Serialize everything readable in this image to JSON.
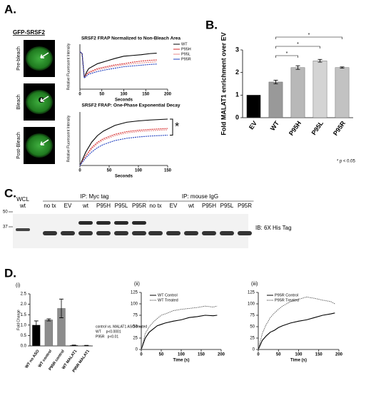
{
  "panel_labels": [
    "A.",
    "B.",
    "C.",
    "D."
  ],
  "micrographs": {
    "title": "GFP-SRSF2",
    "frames": [
      "Pre-bleach",
      "Bleach",
      "Post-Bleach"
    ]
  },
  "blot": {
    "wcl": "WCL",
    "wcl_lane": "wt",
    "groups": [
      {
        "title": "IP: Myc tag",
        "lanes": [
          "no tx",
          "EV",
          "wt",
          "P95H",
          "P95L",
          "P95R"
        ]
      },
      {
        "title": "IP: mouse IgG",
        "lanes": [
          "no tx",
          "EV",
          "wt",
          "P95H",
          "P95L",
          "P95R"
        ]
      }
    ],
    "antibody": "IB: 6X His Tag",
    "markers": [
      50,
      37
    ]
  },
  "chart_data": [
    {
      "type": "line",
      "title": "SRSF2 FRAP Normalized to Non-Bleach Area",
      "x_label": "Seconds",
      "y_label": "Relative Fluorescent Intensity",
      "x": [
        0,
        5,
        10,
        15,
        20,
        40,
        60,
        80,
        100,
        120,
        140,
        160,
        175
      ],
      "xlim": [
        0,
        200
      ],
      "xticks": [
        0,
        50,
        100,
        150,
        200
      ],
      "ylim": [
        0,
        1.2
      ],
      "series": [
        {
          "name": "WT",
          "color": "#000000",
          "values": [
            1.0,
            0.95,
            0.3,
            0.45,
            0.55,
            0.68,
            0.75,
            0.82,
            0.88,
            0.9,
            0.92,
            0.95,
            0.96
          ]
        },
        {
          "name": "P95H",
          "color": "#d62728",
          "values": [
            1.0,
            0.95,
            0.3,
            0.4,
            0.45,
            0.55,
            0.6,
            0.65,
            0.68,
            0.72,
            0.75,
            0.77,
            0.78
          ]
        },
        {
          "name": "P95L",
          "color": "#e88a8a",
          "values": [
            1.0,
            0.94,
            0.3,
            0.38,
            0.43,
            0.52,
            0.57,
            0.62,
            0.65,
            0.68,
            0.7,
            0.72,
            0.73
          ]
        },
        {
          "name": "P95R",
          "color": "#1f3fbf",
          "values": [
            1.0,
            0.95,
            0.3,
            0.35,
            0.4,
            0.47,
            0.52,
            0.56,
            0.6,
            0.62,
            0.64,
            0.66,
            0.67
          ]
        }
      ]
    },
    {
      "type": "line",
      "title": "SRSF2 FRAP: One-Phase Exponential Decay",
      "x_label": "Seconds",
      "y_label": "Relative Fluorescent Intensity",
      "x": [
        0,
        10,
        20,
        30,
        40,
        60,
        80,
        100,
        120,
        150
      ],
      "xlim": [
        0,
        150
      ],
      "xticks": [
        0,
        50,
        100,
        150
      ],
      "ylim": [
        0,
        1.2
      ],
      "annotation": "*",
      "series": [
        {
          "name": "WT",
          "color": "#000000",
          "values": [
            0,
            0.3,
            0.52,
            0.67,
            0.77,
            0.9,
            0.97,
            1.0,
            1.02,
            1.04
          ]
        },
        {
          "name": "P95H",
          "color": "#d62728",
          "values": [
            0,
            0.22,
            0.4,
            0.52,
            0.6,
            0.7,
            0.76,
            0.79,
            0.81,
            0.83
          ]
        },
        {
          "name": "P95L",
          "color": "#e88a8a",
          "values": [
            0,
            0.2,
            0.37,
            0.49,
            0.57,
            0.67,
            0.73,
            0.76,
            0.78,
            0.8
          ]
        },
        {
          "name": "P95R",
          "color": "#1f3fbf",
          "values": [
            0,
            0.17,
            0.3,
            0.4,
            0.47,
            0.56,
            0.61,
            0.64,
            0.66,
            0.68
          ]
        }
      ]
    },
    {
      "type": "bar",
      "y_label": "Fold MALAT1 enrichment over EV",
      "categories": [
        "EV",
        "WT",
        "P95H",
        "P95L",
        "P95R"
      ],
      "values": [
        1,
        1.58,
        2.22,
        2.52,
        2.22
      ],
      "errors": [
        0,
        0.08,
        0.08,
        0.06,
        0.03
      ],
      "colors": [
        "#000000",
        "#999999",
        "#b8b8b8",
        "#d4d4d4",
        "#c2c2c2"
      ],
      "ylim": [
        0,
        3
      ],
      "yticks": [
        0,
        1,
        2,
        3
      ],
      "pairs": [
        [
          "WT",
          "P95H"
        ],
        [
          "WT",
          "P95L"
        ],
        [
          "WT",
          "P95R"
        ]
      ],
      "pair_label": "*",
      "annotation": "* p < 0.05"
    },
    {
      "type": "bar",
      "panel": "(i)",
      "y_label": "Fold Change",
      "categories": [
        "WT no ASO",
        "WT control",
        "P95R control",
        "WT MALAT1",
        "P95R MALAT1"
      ],
      "values": [
        1.0,
        1.25,
        1.8,
        0.03,
        0.02
      ],
      "errors": [
        0.2,
        0.05,
        0.45,
        0.01,
        0.01
      ],
      "colors": [
        "#000000",
        "#8c8c8c",
        "#8c8c8c",
        "#000000",
        "#8c8c8c"
      ],
      "ylim": [
        0,
        2.5
      ],
      "yticks": [
        {
          "value": 0,
          "label": "0.0"
        },
        {
          "value": 0.5,
          "label": "0.5"
        },
        {
          "value": 1,
          "label": "1.0"
        },
        {
          "value": 1.5,
          "label": "1.5"
        },
        {
          "value": 2,
          "label": "2.0"
        },
        {
          "value": 2.5,
          "label": "2.5"
        }
      ],
      "notes": [
        "control vs. MALAT1 ASO-treated",
        "WT     p<0.0001",
        "P95R   p<0.01"
      ]
    },
    {
      "type": "line",
      "panel": "(ii)",
      "x_label": "Time (s)",
      "x": [
        0,
        10,
        20,
        30,
        40,
        50,
        60,
        80,
        100,
        120,
        140,
        160,
        180,
        190
      ],
      "xlim": [
        0,
        200
      ],
      "xticks": [
        0,
        50,
        100,
        150,
        200
      ],
      "ylim": [
        0,
        125
      ],
      "yticks": [
        0,
        25,
        50,
        75,
        100,
        125
      ],
      "series": [
        {
          "name": "WT Control",
          "color": "#000000",
          "values": [
            0,
            25,
            38,
            45,
            52,
            55,
            58,
            62,
            65,
            70,
            72,
            75,
            74,
            75
          ]
        },
        {
          "name": "WT Treated",
          "color": "#555555",
          "dashed": true,
          "values": [
            0,
            35,
            50,
            60,
            68,
            75,
            78,
            85,
            88,
            90,
            92,
            95,
            93,
            95
          ]
        }
      ]
    },
    {
      "type": "line",
      "panel": "(iii)",
      "x_label": "Time (s)",
      "x": [
        0,
        10,
        20,
        30,
        40,
        50,
        60,
        80,
        100,
        120,
        140,
        160,
        180,
        190
      ],
      "xlim": [
        0,
        200
      ],
      "xticks": [
        0,
        50,
        100,
        150,
        200
      ],
      "ylim": [
        0,
        125
      ],
      "yticks": [
        0,
        25,
        50,
        75,
        100,
        125
      ],
      "series": [
        {
          "name": "P95R Control",
          "color": "#000000",
          "values": [
            0,
            20,
            30,
            38,
            42,
            48,
            52,
            58,
            62,
            65,
            70,
            75,
            78,
            80
          ]
        },
        {
          "name": "P95R Treated",
          "color": "#555555",
          "dashed": true,
          "values": [
            0,
            35,
            55,
            70,
            80,
            88,
            95,
            105,
            110,
            115,
            112,
            108,
            105,
            100
          ]
        }
      ]
    }
  ]
}
